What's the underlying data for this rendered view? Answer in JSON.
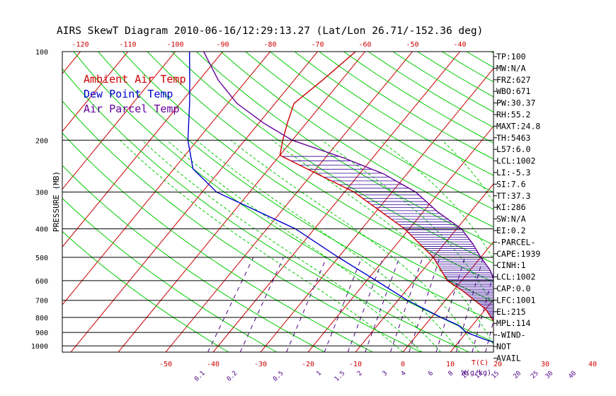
{
  "chart_data": {
    "type": "line",
    "title": "AIRS SkewT Diagram 2010-06-16/12:29:13.27 (Lat/Lon 26.71/-152.36 deg)",
    "ylabel": "PRESSURE (MB)",
    "xlabel_bottom": "T(C)",
    "mixing_ratio_unit": "W(g/kg)",
    "pressure_ticks": [
      100,
      200,
      300,
      400,
      500,
      600,
      700,
      800,
      900,
      1000
    ],
    "temperature_ticks_bottom": [
      -50,
      -40,
      -30,
      -20,
      -10,
      0,
      10,
      20,
      30,
      40
    ],
    "temperature_ticks_top": [
      -120,
      -110,
      -100,
      -90,
      -80,
      -70,
      -60,
      -50,
      -40
    ],
    "mixing_ratio_ticks": [
      "0.1",
      "0.2",
      "0.5",
      "1",
      "1.5",
      "2",
      "3",
      "4",
      "6",
      "8",
      "10",
      "12",
      "15",
      "20",
      "25",
      "30",
      "40"
    ],
    "legend": [
      {
        "label": "Ambient Air Temp",
        "color": "#cc0000"
      },
      {
        "label": "Dew Point Temp",
        "color": "#0000cc"
      },
      {
        "label": "Air Parcel Temp",
        "color": "#660099"
      }
    ],
    "series": [
      {
        "name": "Ambient Air Temp",
        "color": "#cc0000",
        "points": [
          [
            1000,
            21.5
          ],
          [
            925,
            17
          ],
          [
            850,
            15
          ],
          [
            750,
            10
          ],
          [
            650,
            2
          ],
          [
            600,
            -3
          ],
          [
            500,
            -10
          ],
          [
            400,
            -21
          ],
          [
            300,
            -38
          ],
          [
            250,
            -52
          ],
          [
            225,
            -60
          ],
          [
            200,
            -62
          ],
          [
            175,
            -64
          ],
          [
            150,
            -66
          ],
          [
            125,
            -64
          ],
          [
            100,
            -62
          ]
        ]
      },
      {
        "name": "Dew Point Temp",
        "color": "#0000cc",
        "points": [
          [
            1000,
            20.5
          ],
          [
            950,
            15
          ],
          [
            900,
            10
          ],
          [
            850,
            7
          ],
          [
            800,
            2
          ],
          [
            700,
            -8
          ],
          [
            600,
            -18
          ],
          [
            500,
            -30
          ],
          [
            400,
            -44
          ],
          [
            300,
            -67
          ],
          [
            250,
            -76
          ],
          [
            200,
            -82
          ],
          [
            150,
            -88
          ],
          [
            125,
            -92
          ],
          [
            100,
            -97
          ]
        ]
      },
      {
        "name": "Air Parcel Temp",
        "color": "#660099",
        "points": [
          [
            1000,
            21.5
          ],
          [
            950,
            21
          ],
          [
            900,
            20.5
          ],
          [
            850,
            18.5
          ],
          [
            800,
            16.5
          ],
          [
            750,
            15
          ],
          [
            700,
            12.5
          ],
          [
            650,
            10
          ],
          [
            600,
            7
          ],
          [
            550,
            4
          ],
          [
            500,
            0
          ],
          [
            450,
            -4
          ],
          [
            400,
            -9
          ],
          [
            350,
            -17
          ],
          [
            300,
            -25
          ],
          [
            260,
            -35
          ],
          [
            230,
            -46
          ],
          [
            200,
            -60
          ],
          [
            175,
            -69
          ],
          [
            150,
            -78
          ],
          [
            125,
            -86
          ],
          [
            100,
            -94
          ]
        ]
      }
    ]
  },
  "indices": [
    "TP:100",
    "MW:N/A",
    "FRZ:627",
    "WBO:671",
    "PW:30.37",
    "RH:55.2",
    "MAXT:24.8",
    "TH:5463",
    "L57:6.0",
    "LCL:1002",
    "LI:-5.3",
    "SI:7.6",
    "TT:37.3",
    "KI:286",
    "SW:N/A",
    "EI:0.2",
    "-PARCEL-",
    "CAPE:1939",
    "CINH:1",
    "LCL:1002",
    "CAP:0.0",
    "LFC:1001",
    "EL:215",
    "MPL:114",
    "-WIND-",
    "NOT",
    "AVAIL"
  ],
  "colors": {
    "isotherm": "#cc0000",
    "dry_adiabat": "#00cc00",
    "moist_adiabat": "#00cc00",
    "mixing_ratio": "#4b0082",
    "cape_hatch": "#330099",
    "grid": "#000000"
  }
}
